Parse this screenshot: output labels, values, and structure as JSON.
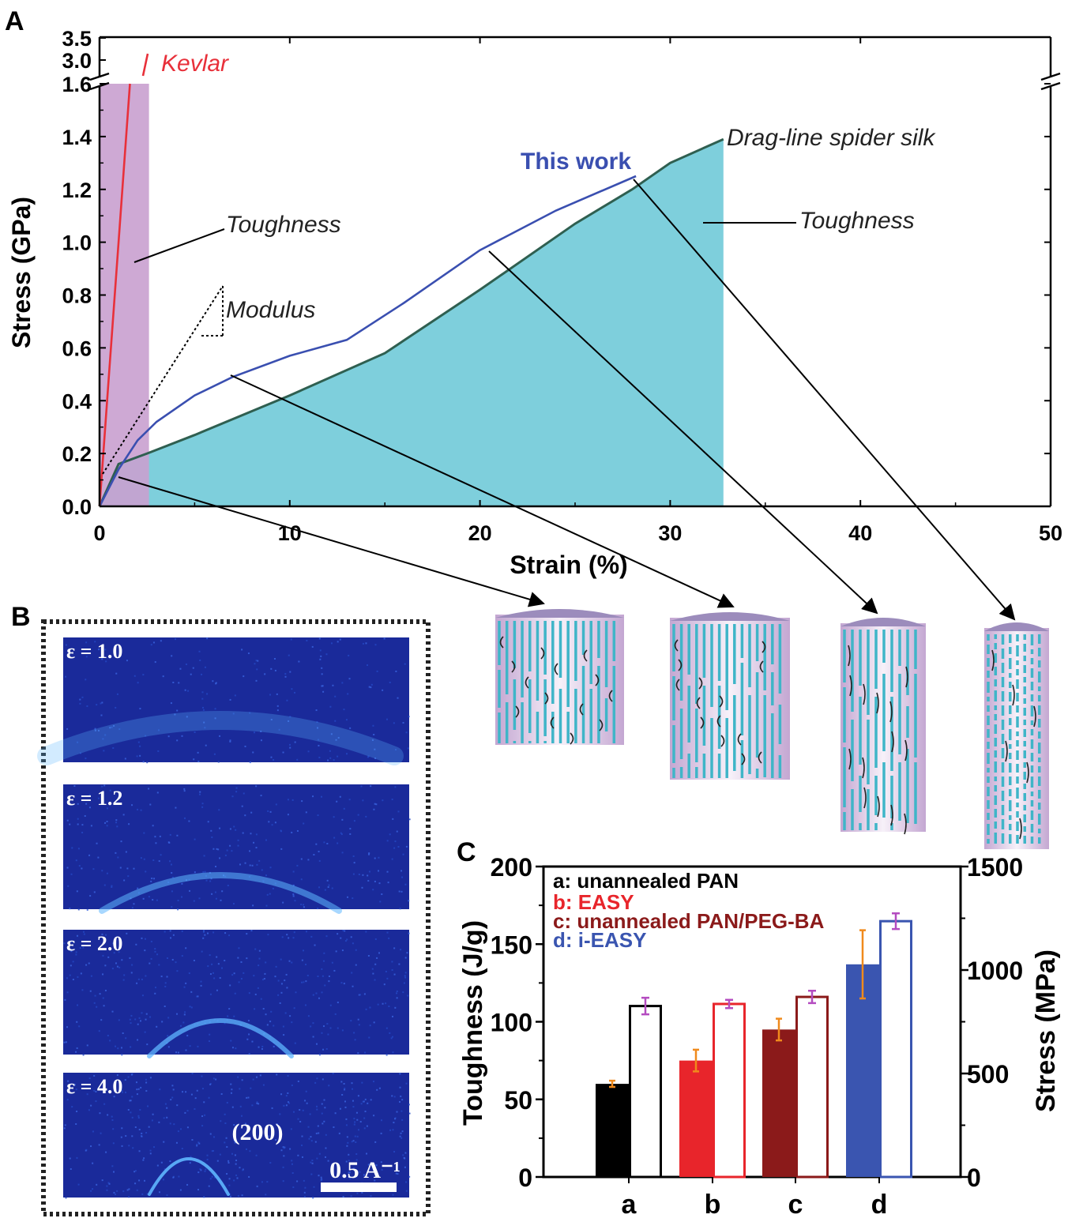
{
  "panels": {
    "a_label": "A",
    "b_label": "B",
    "c_label": "C"
  },
  "panel_a": {
    "xlabel": "Strain (%)",
    "ylabel": "Stress (GPa)",
    "xticks": [
      "0",
      "10",
      "20",
      "30",
      "40",
      "50"
    ],
    "yticks": [
      "0.0",
      "0.2",
      "0.4",
      "0.6",
      "0.8",
      "1.0",
      "1.2",
      "1.4",
      "1.6"
    ],
    "ybreak_ticks": [
      "3.0",
      "3.5"
    ],
    "labels": {
      "kevlar": "Kevlar",
      "this_work": "This work",
      "spider_silk": "Drag-line spider silk",
      "toughness_left": "Toughness",
      "toughness_right": "Toughness",
      "modulus": "Modulus"
    },
    "colors": {
      "kevlar": "#e8303a",
      "this_work": "#3a4fb0",
      "spider_silk": "#2f5f50",
      "spider_fill": "#7ecfdc",
      "kevlar_fill": "#c9a0cf"
    }
  },
  "panel_b": {
    "frames": [
      {
        "label": "ε = 1.0",
        "ring_intensity": 0.28
      },
      {
        "label": "ε = 1.2",
        "ring_intensity": 0.55
      },
      {
        "label": "ε = 2.0",
        "ring_intensity": 0.75
      },
      {
        "label": "ε = 4.0",
        "ring_intensity": 0.9
      }
    ],
    "peak_label": "(200)",
    "scale_bar": "0.5 A⁻¹"
  },
  "chart_data": [
    {
      "type": "line",
      "panel": "A",
      "xlabel": "Strain (%)",
      "ylabel": "Stress (GPa)",
      "xlim": [
        0,
        50
      ],
      "ylim": [
        0,
        1.6
      ],
      "y_break": {
        "below": 1.6,
        "above_ticks": [
          3.0,
          3.5
        ]
      },
      "series": [
        {
          "name": "Kevlar",
          "x": [
            0,
            0.5,
            1.0,
            1.5,
            1.6
          ],
          "y": [
            0,
            0.5,
            1.0,
            1.5,
            1.6
          ]
        },
        {
          "name": "This work",
          "x": [
            0,
            1,
            2,
            3,
            5,
            7,
            10,
            13,
            16,
            20,
            24,
            28.2
          ],
          "y": [
            0,
            0.14,
            0.25,
            0.32,
            0.42,
            0.49,
            0.57,
            0.63,
            0.77,
            0.97,
            1.12,
            1.25
          ]
        },
        {
          "name": "Drag-line spider silk",
          "x": [
            0,
            1,
            2.5,
            5,
            10,
            15,
            20,
            25,
            28,
            30,
            32.8
          ],
          "y": [
            0,
            0.16,
            0.2,
            0.27,
            0.42,
            0.58,
            0.82,
            1.07,
            1.2,
            1.3,
            1.39
          ]
        }
      ]
    },
    {
      "type": "bar",
      "panel": "C",
      "categories": [
        "a",
        "b",
        "c",
        "d"
      ],
      "legend": [
        {
          "key": "a",
          "text": "a: unannealed PAN",
          "color": "#000000"
        },
        {
          "key": "b",
          "text": "b: EASY",
          "color": "#e8252b"
        },
        {
          "key": "c",
          "text": "c: unannealed PAN/PEG-BA",
          "color": "#8b1a1a"
        },
        {
          "key": "d",
          "text": "d: i-EASY",
          "color": "#3a55b0"
        }
      ],
      "ylabel": "Toughness (J/g)",
      "y2label": "Stress (MPa)",
      "ylim": [
        0,
        200
      ],
      "y2lim": [
        0,
        1500
      ],
      "yticks": [
        "0",
        "50",
        "100",
        "150",
        "200"
      ],
      "y2ticks": [
        "0",
        "500",
        "1000",
        "1500"
      ],
      "series": [
        {
          "name": "Toughness (J/g)",
          "filled": true,
          "values": [
            60,
            75,
            95,
            137
          ],
          "errors": [
            2,
            7,
            7,
            22
          ]
        },
        {
          "name": "Stress (MPa)",
          "filled": false,
          "values": [
            826,
            836,
            870,
            1236
          ],
          "errors": [
            40,
            20,
            30,
            38
          ]
        }
      ]
    }
  ]
}
